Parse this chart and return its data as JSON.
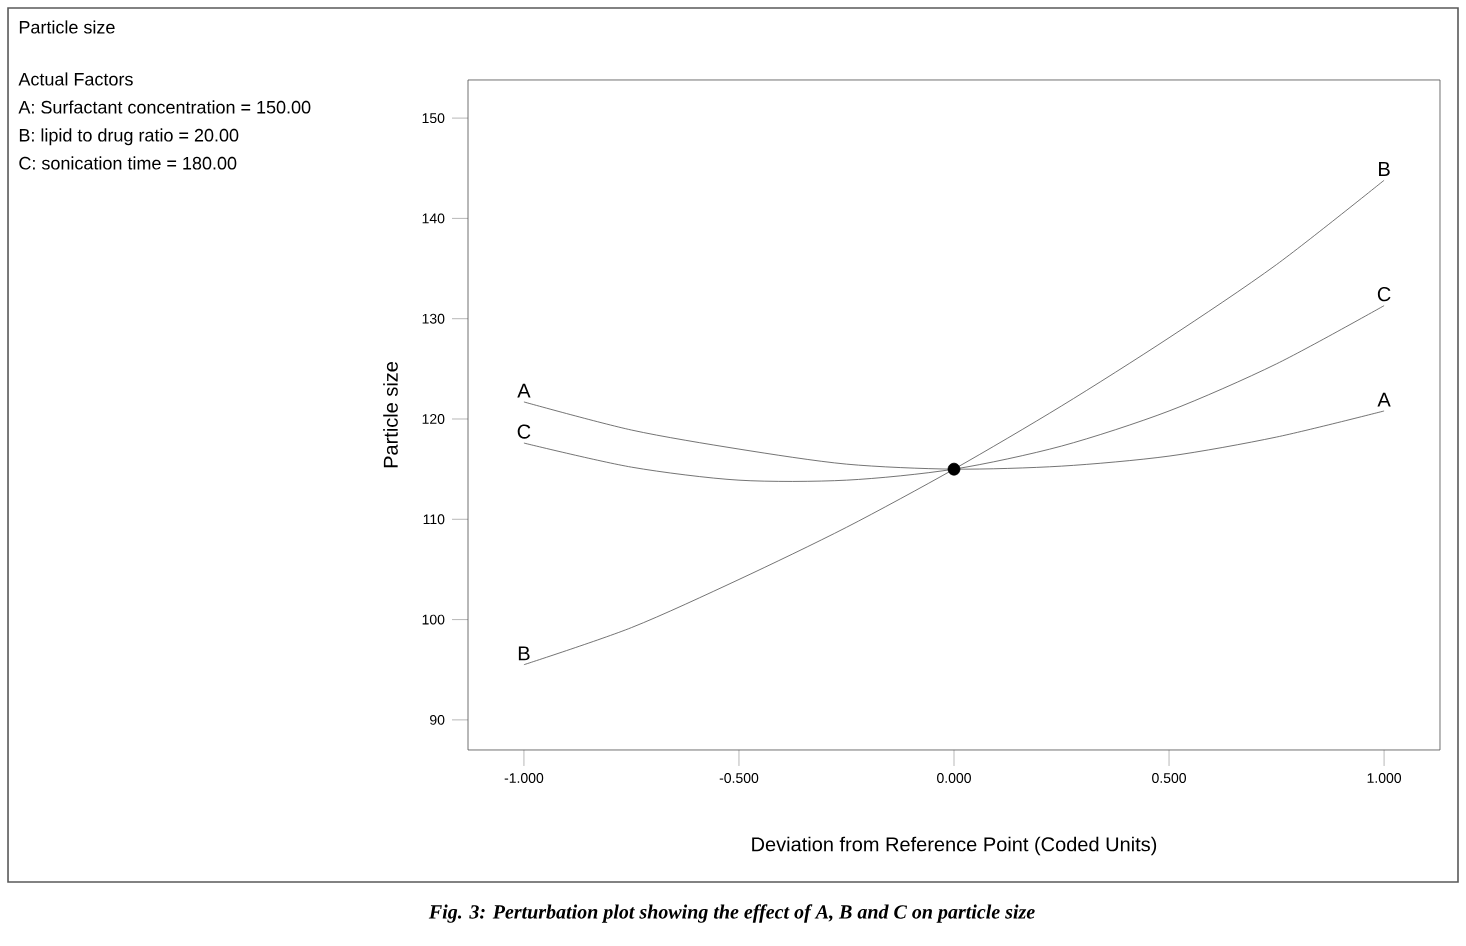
{
  "chart_data": {
    "type": "line",
    "xlabel": "Deviation from Reference Point (Coded Units)",
    "ylabel": "Particle size",
    "x": [
      -1,
      -0.75,
      -0.5,
      -0.25,
      0,
      0.25,
      0.5,
      0.75,
      1
    ],
    "series": [
      {
        "name": "A",
        "color": "#505050",
        "values": [
          121.7,
          118.9,
          117.0,
          115.5,
          115.0,
          115.3,
          116.3,
          118.2,
          120.8
        ]
      },
      {
        "name": "B",
        "color": "#505050",
        "values": [
          95.5,
          99.2,
          104.0,
          109.2,
          115.0,
          121.3,
          128.1,
          135.4,
          143.8
        ]
      },
      {
        "name": "C",
        "color": "#505050",
        "values": [
          117.6,
          115.2,
          113.9,
          113.9,
          115.0,
          117.3,
          120.8,
          125.5,
          131.3
        ]
      },
      {
        "type": "scatter",
        "marker": "circle",
        "color": "#000000",
        "x": [
          0
        ],
        "values": [
          115.0
        ]
      }
    ],
    "xlim": [
      -1.13,
      1.13
    ],
    "ylim": [
      87,
      153.8
    ],
    "xticks": [
      {
        "value": -1,
        "label": "-1.000"
      },
      {
        "value": -0.5,
        "label": "-0.500"
      },
      {
        "value": 0,
        "label": "0.000"
      },
      {
        "value": 0.5,
        "label": "0.500"
      },
      {
        "value": 1,
        "label": "1.000"
      }
    ],
    "yticks": [
      90,
      100,
      110,
      120,
      130,
      140,
      150
    ],
    "grid": false,
    "marker": "none",
    "line_style": "solid",
    "annotations": [
      "Particle size",
      "Actual Factors",
      "A: Surfactant concentration = 150.00",
      "B: lipid to drug ratio = 20.00",
      "C: sonication time = 180.00",
      "Fig. 3: Perturbation plot showing the effect of A, B and C on particle size"
    ]
  }
}
